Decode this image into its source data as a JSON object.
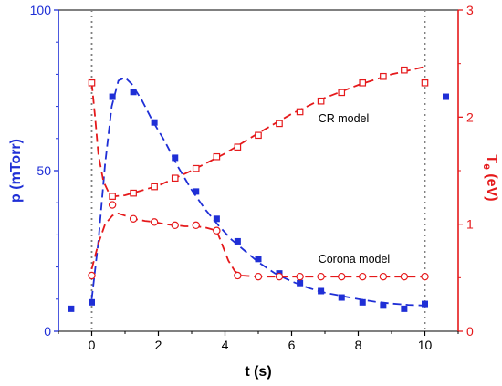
{
  "colors": {
    "left": "#1f2fd6",
    "right": "#e5191b",
    "axis": "#000000",
    "marker_line": "#808080"
  },
  "chart_data": {
    "type": "scatter",
    "xlabel": "t (s)",
    "ylabel_left": "p (mTorr)",
    "ylabel_right_main": "T",
    "ylabel_right_sub": "e",
    "ylabel_right_unit": " (eV)",
    "xlim": [
      -1,
      11
    ],
    "ylim_left": [
      0,
      100
    ],
    "ylim_right": [
      0,
      3
    ],
    "x_ticks": [
      0,
      2,
      4,
      6,
      8,
      10
    ],
    "y_left_ticks": [
      0,
      50,
      100
    ],
    "y_right_ticks": [
      0,
      1,
      2,
      3
    ],
    "vertical_markers": [
      0,
      10
    ],
    "annotations": [
      {
        "text": "CR model",
        "x": 6.8,
        "y_right": 1.95
      },
      {
        "text": "Corona model",
        "x": 6.8,
        "y_right": 0.64
      }
    ],
    "series": [
      {
        "axis": "left",
        "marker": "filled-square",
        "x": [
          -0.62,
          0.0,
          0.62,
          1.25,
          1.88,
          2.5,
          3.13,
          3.75,
          4.38,
          5.0,
          5.63,
          6.25,
          6.88,
          7.5,
          8.13,
          8.75,
          9.38,
          10.0,
          10.63
        ],
        "y": [
          7,
          9,
          73,
          74.5,
          65,
          54,
          43.5,
          35,
          28,
          22.5,
          18,
          15,
          12.5,
          10.5,
          9,
          8,
          7,
          8.5,
          73
        ]
      },
      {
        "axis": "left",
        "line": "dashed",
        "x": [
          0.0,
          0.2,
          0.4,
          0.6,
          0.8,
          1.0,
          1.2,
          1.5,
          1.8,
          2.2,
          2.6,
          3.0,
          3.4,
          3.8,
          4.2,
          4.6,
          5.0,
          5.5,
          6.0,
          6.5,
          7.0,
          7.5,
          8.0,
          8.5,
          9.0,
          9.5,
          10.0
        ],
        "y": [
          10,
          28,
          52,
          70,
          78,
          79,
          77,
          72,
          66,
          59,
          51,
          44,
          38,
          33,
          28.5,
          25,
          21.5,
          18,
          15.5,
          13.5,
          12,
          11,
          10,
          9.2,
          8.6,
          8.2,
          8
        ]
      },
      {
        "axis": "right",
        "marker": "open-square",
        "x": [
          0.0,
          0.62,
          1.25,
          1.88,
          2.5,
          3.13,
          3.75,
          4.38,
          5.0,
          5.63,
          6.25,
          6.88,
          7.5,
          8.13,
          8.75,
          9.38,
          10.0
        ],
        "y": [
          2.32,
          1.26,
          1.29,
          1.35,
          1.43,
          1.52,
          1.63,
          1.72,
          1.83,
          1.94,
          2.05,
          2.15,
          2.23,
          2.32,
          2.38,
          2.44,
          2.32
        ]
      },
      {
        "axis": "right",
        "line": "dashed",
        "x": [
          0.0,
          0.1,
          0.2,
          0.35,
          0.5,
          0.65,
          1.0,
          2.0,
          3.0,
          4.0,
          5.0,
          6.0,
          7.0,
          8.0,
          9.0,
          10.0
        ],
        "y": [
          2.32,
          2.0,
          1.65,
          1.4,
          1.3,
          1.26,
          1.27,
          1.36,
          1.5,
          1.66,
          1.85,
          2.03,
          2.18,
          2.3,
          2.4,
          2.47
        ]
      },
      {
        "axis": "right",
        "marker": "open-circle",
        "x": [
          0.0,
          0.62,
          1.25,
          1.88,
          2.5,
          3.13,
          3.75,
          4.38,
          5.0,
          5.63,
          6.25,
          6.88,
          7.5,
          8.13,
          8.75,
          9.38,
          10.0
        ],
        "y": [
          0.52,
          1.18,
          1.05,
          1.02,
          0.99,
          0.99,
          0.94,
          0.52,
          0.51,
          0.51,
          0.51,
          0.51,
          0.51,
          0.51,
          0.51,
          0.51,
          0.51
        ]
      },
      {
        "axis": "right",
        "line": "dashed",
        "x": [
          0.0,
          0.2,
          0.4,
          0.62,
          0.8,
          1.0,
          1.25,
          1.6,
          1.88,
          2.2,
          2.5,
          2.8,
          3.13,
          3.4,
          3.75,
          3.9,
          4.1,
          4.3,
          4.5,
          5.0,
          6.0,
          7.0,
          8.0,
          9.0,
          10.0
        ],
        "y": [
          0.58,
          0.82,
          1.0,
          1.08,
          1.1,
          1.08,
          1.05,
          1.03,
          1.02,
          1.0,
          0.99,
          0.98,
          0.98,
          0.97,
          0.94,
          0.82,
          0.66,
          0.56,
          0.52,
          0.51,
          0.51,
          0.51,
          0.51,
          0.51,
          0.51
        ]
      }
    ]
  }
}
